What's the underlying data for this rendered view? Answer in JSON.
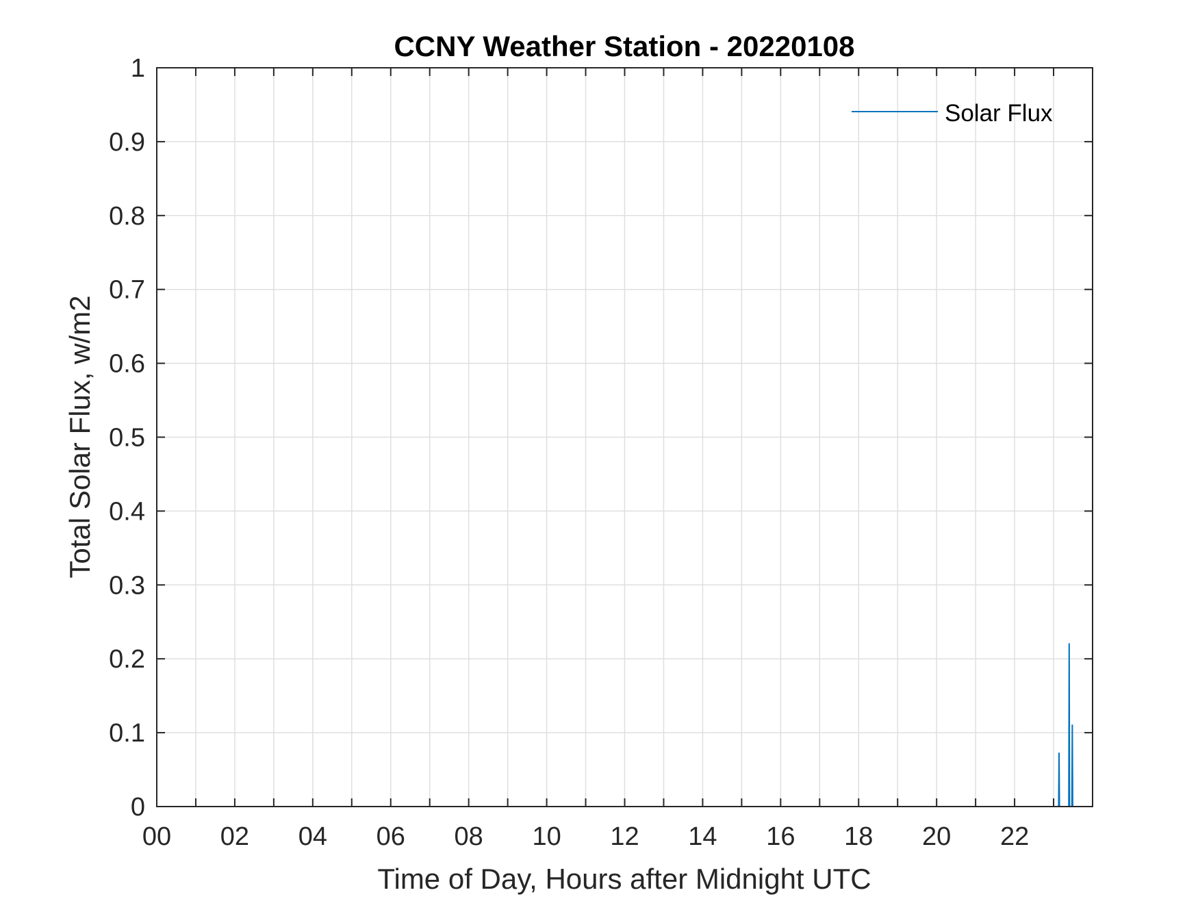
{
  "chart_data": {
    "type": "line",
    "title": "CCNY Weather Station - 20220108",
    "xlabel": "Time of Day, Hours after Midnight UTC",
    "ylabel": "Total Solar Flux, w/m2",
    "xlim": [
      0,
      24
    ],
    "ylim": [
      0,
      1
    ],
    "grid": true,
    "legend_position": "top-right",
    "x_tick_values": [
      0,
      2,
      4,
      6,
      8,
      10,
      12,
      14,
      16,
      18,
      20,
      22
    ],
    "x_tick_labels": [
      "00",
      "02",
      "04",
      "06",
      "08",
      "10",
      "12",
      "14",
      "16",
      "18",
      "20",
      "22"
    ],
    "x_minor_ticks": [
      1,
      3,
      5,
      7,
      9,
      11,
      13,
      15,
      17,
      19,
      21,
      23
    ],
    "y_tick_values": [
      0,
      0.1,
      0.2,
      0.3,
      0.4,
      0.5,
      0.6,
      0.7,
      0.8,
      0.9,
      1
    ],
    "y_tick_labels": [
      "0",
      "0.1",
      "0.2",
      "0.3",
      "0.4",
      "0.5",
      "0.6",
      "0.7",
      "0.8",
      "0.9",
      "1"
    ],
    "series": [
      {
        "name": "Solar Flux",
        "color": "#0072BD",
        "x": [
          0,
          23.13,
          23.14,
          23.15,
          23.39,
          23.4,
          23.41,
          23.47,
          23.48,
          23.49,
          23.5
        ],
        "y": [
          0,
          0,
          0.073,
          0,
          0,
          0.221,
          0,
          0,
          0.111,
          0,
          0
        ]
      }
    ]
  }
}
